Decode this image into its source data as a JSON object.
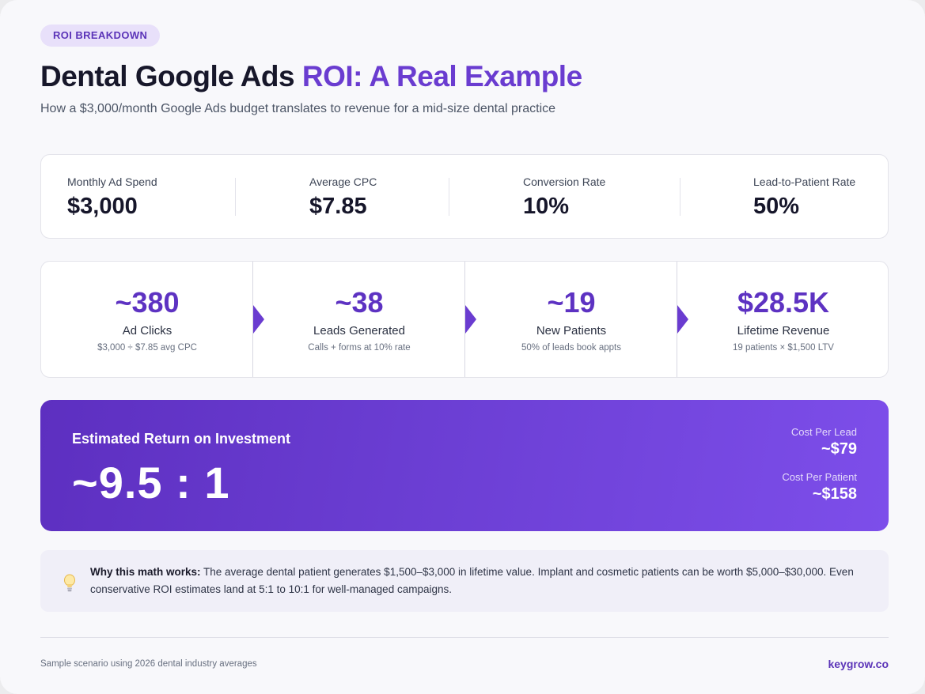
{
  "badge": "ROI BREAKDOWN",
  "title": {
    "main": "Dental Google Ads ",
    "accent": "ROI: A Real Example"
  },
  "subtitle": "How a $3,000/month Google Ads budget translates to revenue for a mid-size dental practice",
  "stats": [
    {
      "label": "Monthly Ad Spend",
      "value": "$3,000"
    },
    {
      "label": "Average CPC",
      "value": "$7.85"
    },
    {
      "label": "Conversion Rate",
      "value": "10%"
    },
    {
      "label": "Lead-to-Patient Rate",
      "value": "50%"
    }
  ],
  "funnel": [
    {
      "value": "~380",
      "label": "Ad Clicks",
      "desc": "$3,000 ÷ $7.85 avg CPC"
    },
    {
      "value": "~38",
      "label": "Leads Generated",
      "desc": "Calls + forms at 10% rate"
    },
    {
      "value": "~19",
      "label": "New Patients",
      "desc": "50% of leads book appts"
    },
    {
      "value": "$28.5K",
      "label": "Lifetime Revenue",
      "desc": "19 patients × $1,500 LTV"
    }
  ],
  "roi": {
    "label": "Estimated Return on Investment",
    "value": "~9.5 : 1",
    "metrics": [
      {
        "label": "Cost Per Lead",
        "value": "~$79"
      },
      {
        "label": "Cost Per Patient",
        "value": "~$158"
      }
    ]
  },
  "note": {
    "icon": "lightbulb-icon",
    "lead": "Why this math works:",
    "body": " The average dental patient generates $1,500–$3,000 in lifetime value. Implant and cosmetic patients can be worth $5,000–$30,000. Even conservative ROI estimates land at 5:1 to 10:1 for well-managed campaigns."
  },
  "footer": {
    "left": "Sample scenario using 2026 dental industry averages",
    "right": "keygrow.co"
  },
  "colors": {
    "accent": "#6a3cd0",
    "badge_bg": "#e8e0fa",
    "gradient_start": "#5d2fc0",
    "gradient_end": "#7d4eea"
  }
}
